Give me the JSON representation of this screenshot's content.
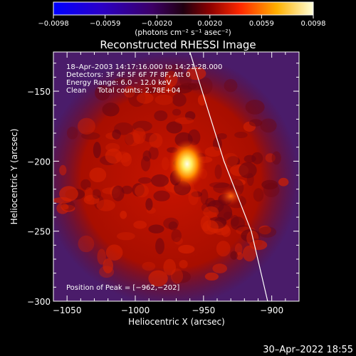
{
  "chart_data": {
    "type": "heatmap",
    "title": "Reconstructed RHESSI Image",
    "xlabel": "Heliocentric X (arcsec)",
    "ylabel": "Heliocentric Y (arcsec)",
    "xlim": [
      -1060,
      -880
    ],
    "ylim": [
      -300,
      -122
    ],
    "x_ticks": [
      -1050,
      -1000,
      -950,
      -900
    ],
    "x_tick_labels": [
      "−1050",
      "−1000",
      "−950",
      "−900"
    ],
    "y_ticks": [
      -300,
      -250,
      -200,
      -150
    ],
    "y_tick_labels": [
      "−300",
      "−250",
      "−200",
      "−150"
    ],
    "colorbar": {
      "range": [
        -0.0098,
        0.0098
      ],
      "ticks": [
        -0.0098,
        -0.0059,
        -0.002,
        0.002,
        0.0059,
        0.0098
      ],
      "tick_labels": [
        "−0.0098",
        "−0.0059",
        "−0.0020",
        "0.0020",
        "0.0059",
        "0.0098"
      ],
      "unit_label": "(photons cm⁻² s⁻¹ asec⁻²)"
    },
    "annotations": [
      "18–Apr–2003 14:17:16.000 to 14:21:28.000",
      "Detectors: 3F 4F 5F 6F 7F 8F, Att 0",
      "Energy Range: 6.0 – 12.0 keV",
      "Clean     Total counts: 2.78E+04"
    ],
    "peak_label": "Position of Peak = [−962,−202]",
    "peak": [
      -962,
      -202
    ],
    "limb_line": [
      [
        -960,
        -122
      ],
      [
        -935,
        -200
      ],
      [
        -915,
        -250
      ],
      [
        -903,
        -300
      ]
    ],
    "sources": [
      {
        "x": -962,
        "y": -202,
        "intensity": 0.0098
      },
      {
        "x": -930,
        "y": -225,
        "intensity": 0.005
      }
    ],
    "background_level": 0.003,
    "grid": false
  },
  "footer": {
    "timestamp": "30–Apr–2022 18:55"
  }
}
